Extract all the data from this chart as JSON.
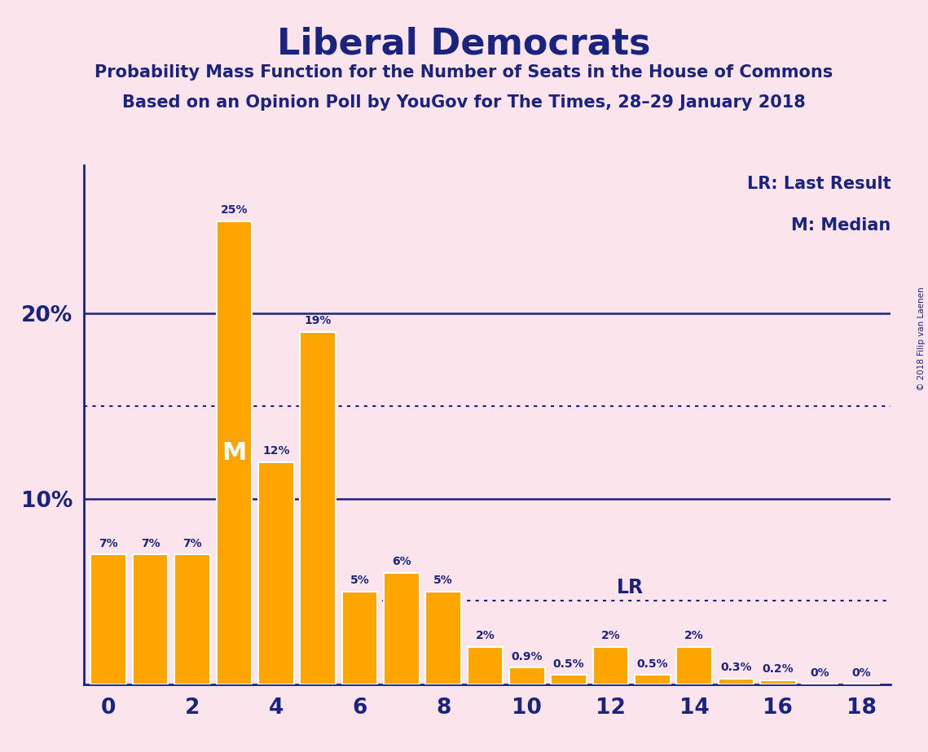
{
  "title": "Liberal Democrats",
  "subtitle1": "Probability Mass Function for the Number of Seats in the House of Commons",
  "subtitle2": "Based on an Opinion Poll by YouGov for The Times, 28–29 January 2018",
  "background_color": "#fce4ec",
  "bar_color": "#FFA500",
  "bar_edge_color": "#ffffff",
  "text_color": "#1a237e",
  "categories": [
    0,
    1,
    2,
    3,
    4,
    5,
    6,
    7,
    8,
    9,
    10,
    11,
    12,
    13,
    14,
    15,
    16,
    17,
    18
  ],
  "values": [
    7,
    7,
    7,
    25,
    12,
    19,
    5,
    6,
    5,
    2,
    0.9,
    0.5,
    2,
    0.5,
    2,
    0.3,
    0.2,
    0.05,
    0.05
  ],
  "labels": [
    "7%",
    "7%",
    "7%",
    "25%",
    "12%",
    "19%",
    "5%",
    "6%",
    "5%",
    "2%",
    "0.9%",
    "0.5%",
    "2%",
    "0.5%",
    "2%",
    "0.3%",
    "0.2%",
    "0%",
    "0%"
  ],
  "median_x": 3,
  "last_result_x": 12,
  "last_result_y": 4.5,
  "dotted_line_15": 15,
  "dotted_line_lr": 4.5,
  "legend_lr": "LR: Last Result",
  "legend_m": "M: Median",
  "copyright": "© 2018 Filip van Laenen",
  "ylim": [
    0,
    28
  ],
  "xlabel_ticks": [
    0,
    2,
    4,
    6,
    8,
    10,
    12,
    14,
    16,
    18
  ]
}
